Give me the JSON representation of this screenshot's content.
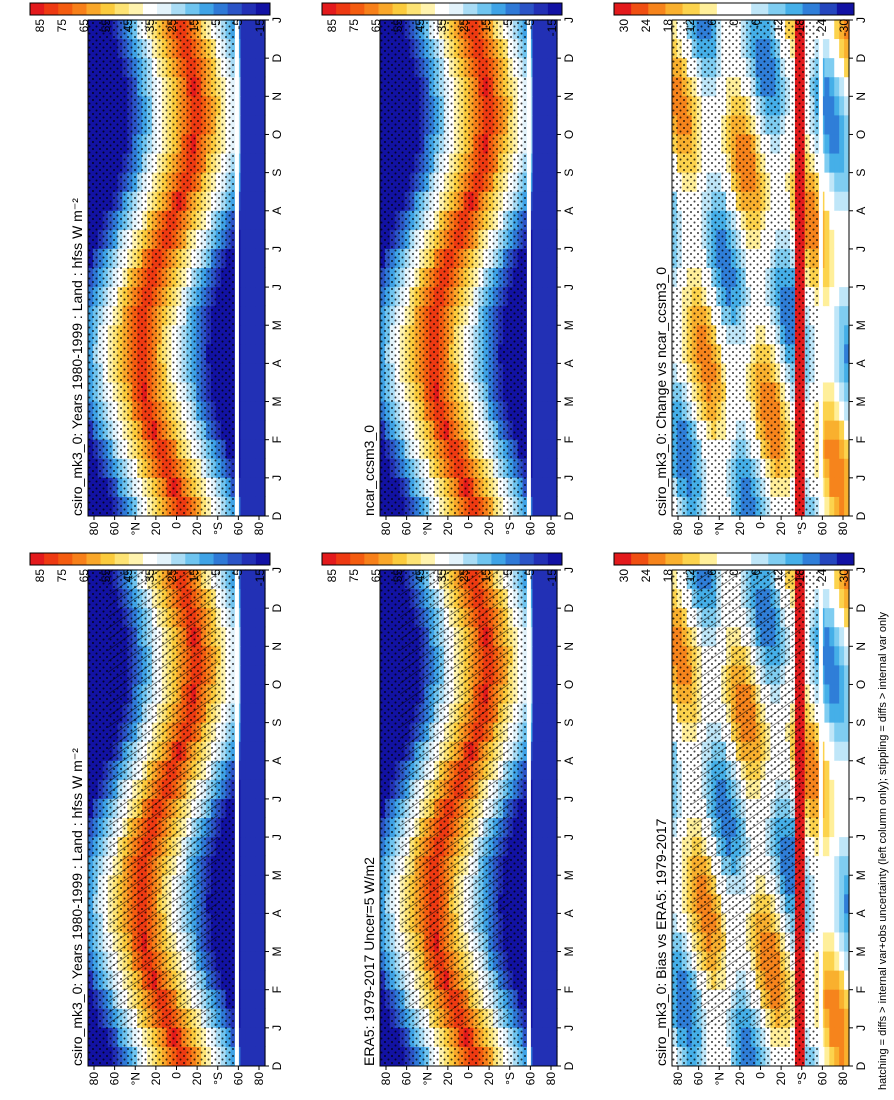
{
  "figure": {
    "footer": "hatching = diffs > internal var+obs uncertainty (left column only); stippling = diffs > internal var only"
  },
  "chart_data": [
    {
      "type": "heatmap",
      "title": "csiro_mk3_0: Years 1980-1999 : Land : hfss W m⁻²",
      "months": [
        "D",
        "J",
        "F",
        "M",
        "A",
        "M",
        "J",
        "J",
        "A",
        "S",
        "O",
        "N",
        "D",
        "J"
      ],
      "lat_labels": [
        "80",
        "60",
        "°N",
        "20",
        "0",
        "20",
        "°S",
        "60",
        "80"
      ],
      "colorbar": [
        "85",
        "75",
        "65",
        "55",
        "45",
        "35",
        "25",
        "15",
        "5",
        "-5",
        "-15"
      ],
      "colors": [
        "#e31a1c",
        "#ee3a12",
        "#f45c10",
        "#f7801a",
        "#f9a72a",
        "#fbcb3d",
        "#fde374",
        "#fff3ae",
        "#ffffff",
        "#e3f3fb",
        "#a9dcf5",
        "#6fc4ef",
        "#3fa3e6",
        "#2f79d6",
        "#2b54c6",
        "#2230b5",
        "#1212a3"
      ],
      "hatching": true,
      "stippling": true
    },
    {
      "type": "heatmap",
      "title": "csiro_mk3_0: Years 1980-1999 : Land : hfss W m⁻²",
      "months": [
        "D",
        "J",
        "F",
        "M",
        "A",
        "M",
        "J",
        "J",
        "A",
        "S",
        "O",
        "N",
        "D",
        "J"
      ],
      "lat_labels": [
        "80",
        "60",
        "°N",
        "20",
        "0",
        "20",
        "°S",
        "60",
        "80"
      ],
      "colorbar": [
        "85",
        "75",
        "65",
        "55",
        "45",
        "35",
        "25",
        "15",
        "5",
        "-5",
        "-15"
      ],
      "colors": [
        "#e31a1c",
        "#ee3a12",
        "#f45c10",
        "#f7801a",
        "#f9a72a",
        "#fbcb3d",
        "#fde374",
        "#fff3ae",
        "#ffffff",
        "#e3f3fb",
        "#a9dcf5",
        "#6fc4ef",
        "#3fa3e6",
        "#2f79d6",
        "#2b54c6",
        "#2230b5",
        "#1212a3"
      ],
      "hatching": false,
      "stippling": true
    },
    {
      "type": "heatmap",
      "title": "ERA5: 1979-2017 Uncer=5 W/m2",
      "months": [
        "D",
        "J",
        "F",
        "M",
        "A",
        "M",
        "J",
        "J",
        "A",
        "S",
        "O",
        "N",
        "D",
        "J"
      ],
      "lat_labels": [
        "80",
        "60",
        "°N",
        "20",
        "0",
        "20",
        "°S",
        "60",
        "80"
      ],
      "colorbar": [
        "85",
        "75",
        "65",
        "55",
        "45",
        "35",
        "25",
        "15",
        "5",
        "-5",
        "-15"
      ],
      "colors": [
        "#e31a1c",
        "#ee3a12",
        "#f45c10",
        "#f7801a",
        "#f9a72a",
        "#fbcb3d",
        "#fde374",
        "#fff3ae",
        "#ffffff",
        "#e3f3fb",
        "#a9dcf5",
        "#6fc4ef",
        "#3fa3e6",
        "#2f79d6",
        "#2b54c6",
        "#2230b5",
        "#1212a3"
      ],
      "hatching": true,
      "stippling": true
    },
    {
      "type": "heatmap",
      "title": "ncar_ccsm3_0",
      "months": [
        "D",
        "J",
        "F",
        "M",
        "A",
        "M",
        "J",
        "J",
        "A",
        "S",
        "O",
        "N",
        "D",
        "J"
      ],
      "lat_labels": [
        "80",
        "60",
        "°N",
        "20",
        "0",
        "20",
        "°S",
        "60",
        "80"
      ],
      "colorbar": [
        "85",
        "75",
        "65",
        "55",
        "45",
        "35",
        "25",
        "15",
        "5",
        "-5",
        "-15"
      ],
      "colors": [
        "#e31a1c",
        "#ee3a12",
        "#f45c10",
        "#f7801a",
        "#f9a72a",
        "#fbcb3d",
        "#fde374",
        "#fff3ae",
        "#ffffff",
        "#e3f3fb",
        "#a9dcf5",
        "#6fc4ef",
        "#3fa3e6",
        "#2f79d6",
        "#2b54c6",
        "#2230b5",
        "#1212a3"
      ],
      "hatching": false,
      "stippling": true
    },
    {
      "type": "heatmap",
      "title": "csiro_mk3_0: Bias vs ERA5: 1979-2017",
      "months": [
        "D",
        "J",
        "F",
        "M",
        "A",
        "M",
        "J",
        "J",
        "A",
        "S",
        "O",
        "N",
        "D",
        "J"
      ],
      "lat_labels": [
        "80",
        "60",
        "°N",
        "20",
        "0",
        "20",
        "°S",
        "60",
        "80"
      ],
      "colorbar": [
        "30",
        "24",
        "18",
        "12",
        "6",
        "0",
        "-6",
        "-12",
        "-18",
        "-24",
        "-30"
      ],
      "colors": [
        "#e31a1c",
        "#f04f12",
        "#f6841c",
        "#f9b02e",
        "#fcd34d",
        "#ffef9a",
        "#ffffff",
        "#ffffff",
        "#bfe6f8",
        "#7fcdf1",
        "#45afe8",
        "#2f7ed8",
        "#2446bd",
        "#1212a3"
      ],
      "hatching": true,
      "stippling": true
    },
    {
      "type": "heatmap",
      "title": "csiro_mk3_0: Change vs ncar_ccsm3_0",
      "months": [
        "D",
        "J",
        "F",
        "M",
        "A",
        "M",
        "J",
        "J",
        "A",
        "S",
        "O",
        "N",
        "D",
        "J"
      ],
      "lat_labels": [
        "80",
        "60",
        "°N",
        "20",
        "0",
        "20",
        "°S",
        "60",
        "80"
      ],
      "colorbar": [
        "30",
        "24",
        "18",
        "12",
        "6",
        "0",
        "-6",
        "-12",
        "-18",
        "-24",
        "-30"
      ],
      "colors": [
        "#e31a1c",
        "#f04f12",
        "#f6841c",
        "#f9b02e",
        "#fcd34d",
        "#ffef9a",
        "#ffffff",
        "#ffffff",
        "#bfe6f8",
        "#7fcdf1",
        "#45afe8",
        "#2f7ed8",
        "#2446bd",
        "#1212a3"
      ],
      "hatching": false,
      "stippling": true
    }
  ]
}
